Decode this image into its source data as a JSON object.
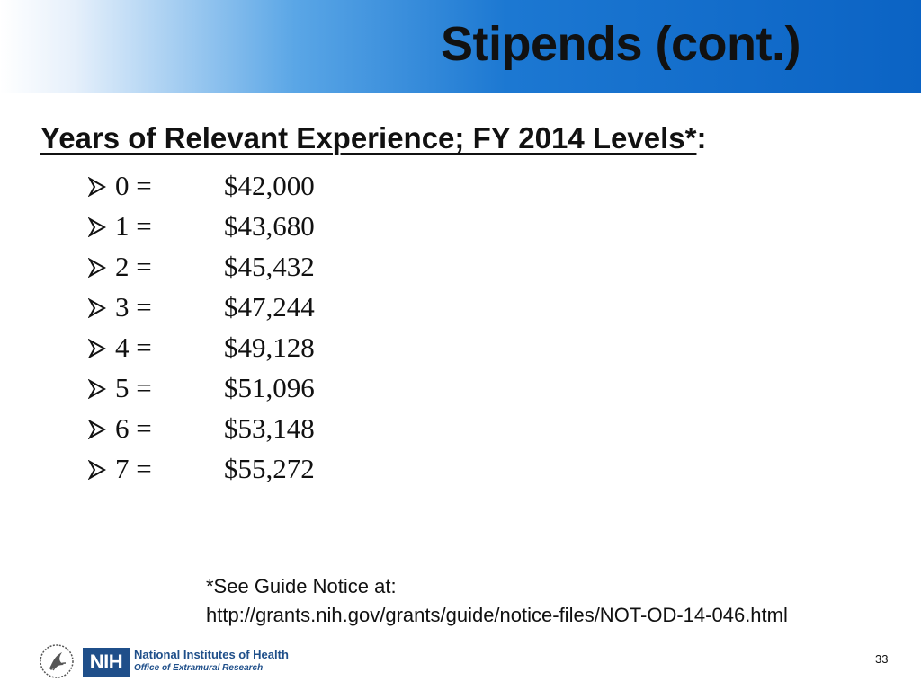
{
  "slide": {
    "title": "Stipends (cont.)",
    "heading_underlined": "Years of Relevant Experience; FY 2014 Levels*",
    "heading_suffix": ":",
    "stipends": [
      {
        "years": "0 =",
        "amount": "$42,000"
      },
      {
        "years": "1 =",
        "amount": "$43,680"
      },
      {
        "years": "2 =",
        "amount": "$45,432"
      },
      {
        "years": "3 =",
        "amount": "$47,244"
      },
      {
        "years": "4 =",
        "amount": "$49,128"
      },
      {
        "years": "5 =",
        "amount": "$51,096"
      },
      {
        "years": "6 =",
        "amount": "$53,148"
      },
      {
        "years": "7 =",
        "amount": "$55,272"
      }
    ],
    "note_line1": "*See Guide Notice at:",
    "note_line2": "http://grants.nih.gov/grants/guide/notice-files/NOT-OD-14-046.html",
    "page_number": "33"
  },
  "footer": {
    "nih_abbrev": "NIH",
    "nih_name": "National Institutes of Health",
    "office_name": "Office of Extramural Research"
  },
  "icons": {
    "bullet": "arrowhead-bullet-icon",
    "hhs": "hhs-eagle-logo-icon"
  },
  "colors": {
    "title_bar_blue": "#0b63c4",
    "nih_blue": "#1f4f8a",
    "text": "#111111"
  }
}
